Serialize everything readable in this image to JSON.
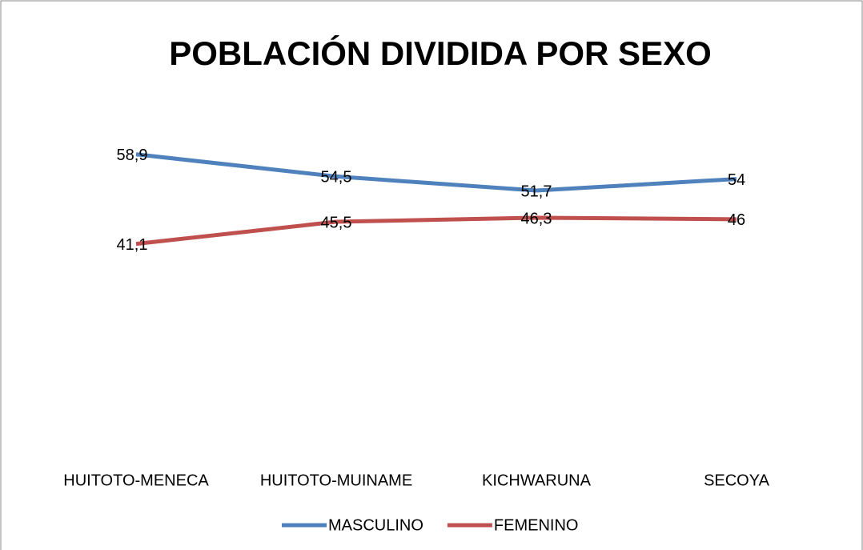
{
  "chart_data": {
    "type": "line",
    "title": "POBLACIÓN DIVIDIDA POR SEXO",
    "categories": [
      "HUITOTO-MENECA",
      "HUITOTO-MUINAME",
      "KICHWARUNA",
      "SECOYA"
    ],
    "series": [
      {
        "name": "MASCULINO",
        "color": "#4f81bd",
        "values": [
          58.9,
          54.5,
          51.7,
          54
        ],
        "value_labels": [
          "58,9",
          "54,5",
          "51,7",
          "54"
        ]
      },
      {
        "name": "FEMENINO",
        "color": "#c0504d",
        "values": [
          41.1,
          45.5,
          46.3,
          46
        ],
        "value_labels": [
          "41,1",
          "45,5",
          "46,3",
          "46"
        ]
      }
    ],
    "ylim": [
      0,
      70
    ],
    "legend": "bottom"
  }
}
